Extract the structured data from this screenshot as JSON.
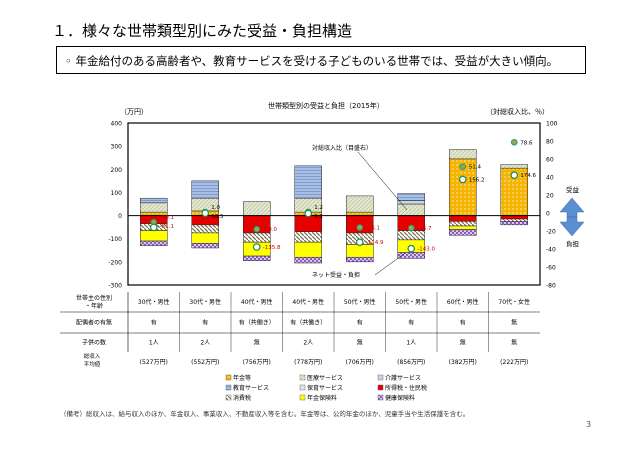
{
  "header": {
    "title": "１．様々な世帯類型別にみた受益・負担構造",
    "summary": "◦ 年金給付のある高齢者や、教育サービスを受ける子どものいる世帯では、受益が大きい傾向。"
  },
  "chart_data": {
    "type": "bar",
    "stacked": true,
    "title": "世帯類型別の受益と負担（2015年）",
    "ylabel_left": "（万円）",
    "ylabel_right": "（対総収入比、％）",
    "ylim_left": [
      -300,
      400
    ],
    "ylim_right": [
      -80,
      100
    ],
    "yticks_left": [
      -300,
      -200,
      -100,
      0,
      100,
      200,
      300,
      400
    ],
    "yticks_right": [
      -80,
      -60,
      -40,
      -20,
      0,
      20,
      40,
      60,
      80,
      100
    ],
    "categories": [
      "30代・男性",
      "30代・男性",
      "40代・男性",
      "40代・男性",
      "50代・男性",
      "50代・男性",
      "60代・男性",
      "70代・女性"
    ],
    "series": [
      {
        "name": "年金等",
        "color": "#f5b400",
        "values": [
          15,
          20,
          0,
          15,
          15,
          0,
          245,
          205
        ]
      },
      {
        "name": "医療サービス",
        "color": "#dfe3c6",
        "values": [
          40,
          55,
          60,
          60,
          70,
          50,
          40,
          15
        ]
      },
      {
        "name": "介護サービス",
        "color": "#c6d4ea",
        "values": [
          0,
          0,
          0,
          0,
          0,
          15,
          0,
          0
        ]
      },
      {
        "name": "教育サービス",
        "color": "#8eaadb",
        "values": [
          20,
          75,
          0,
          140,
          0,
          30,
          0,
          0
        ]
      },
      {
        "name": "保育サービス",
        "color": "#d9e4f2",
        "values": [
          0,
          0,
          0,
          0,
          0,
          0,
          0,
          0
        ]
      },
      {
        "name": "所得税・住民税",
        "color": "#e60000",
        "values": [
          -35,
          -40,
          -75,
          -70,
          -75,
          -65,
          -25,
          -15
        ]
      },
      {
        "name": "消費税",
        "color": "#a8a070",
        "values": [
          -30,
          -35,
          -40,
          -45,
          -50,
          -40,
          -20,
          -10
        ]
      },
      {
        "name": "年金保険料",
        "color": "#ffff00",
        "values": [
          -45,
          -45,
          -60,
          -65,
          -55,
          -55,
          -15,
          0
        ]
      },
      {
        "name": "健康保険料",
        "color": "#9966cc",
        "values": [
          -20,
          -20,
          -20,
          -25,
          -20,
          -25,
          -25,
          -15
        ]
      }
    ],
    "net_benefit": [
      -51.1,
      10.5,
      -135.8,
      9.1,
      -114.9,
      -143.0,
      156.2,
      174.6
    ],
    "ratio_to_income": [
      -10.1,
      1.0,
      -18.0,
      1.2,
      -16.1,
      -16.7,
      51.4,
      78.6
    ],
    "annotations": {
      "ratio": "対総収入比（目盛右）",
      "net": "ネット受益・負担",
      "benefit": "受益",
      "burden": "負担"
    },
    "legend_placement": "bottom",
    "grid": false
  },
  "table": {
    "row_headers": [
      "世帯主の性別・年齢",
      "配偶者の有無",
      "子供の数"
    ],
    "ages": [
      "30代・男性",
      "30代・男性",
      "40代・男性",
      "40代・男性",
      "50代・男性",
      "50代・男性",
      "60代・男性",
      "70代・女性"
    ],
    "spouse": [
      "有",
      "有",
      "有（共働き）",
      "有（共働き）",
      "有",
      "有",
      "有",
      "無"
    ],
    "children": [
      "1人",
      "2人",
      "無",
      "2人",
      "無",
      "1人",
      "無",
      "無"
    ],
    "income_label": "総収入平均値",
    "income": [
      "(527万円)",
      "(552万円)",
      "(756万円)",
      "(778万円)",
      "(706万円)",
      "(856万円)",
      "(382万円)",
      "(222万円)"
    ]
  },
  "footnote": "（備考）総収入は、給与収入のほか、年金収入、事業収入、不動産収入等を含む。年金等は、公的年金のほか、児童手当や生活保護を含む。",
  "page_number": "3"
}
